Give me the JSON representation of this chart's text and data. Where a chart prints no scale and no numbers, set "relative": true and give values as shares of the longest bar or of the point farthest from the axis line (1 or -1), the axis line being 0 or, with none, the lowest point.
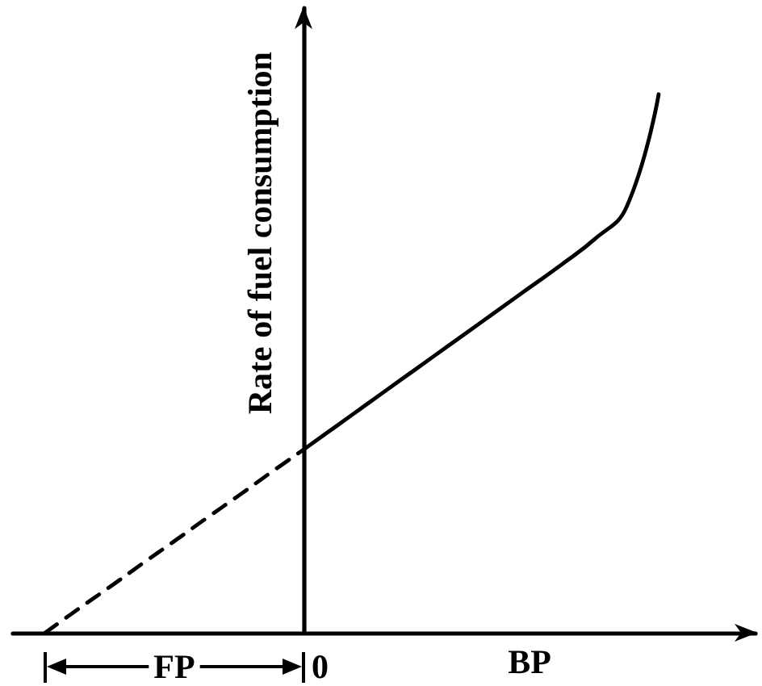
{
  "chart_data": {
    "type": "line",
    "relative": true,
    "ylabel": "Rate of fuel consumption",
    "xlabel": "BP",
    "annotations": [
      "FP",
      "0"
    ],
    "marker": "none",
    "categories": [
      null,
      null,
      null,
      null,
      null,
      null,
      null,
      null,
      null,
      null,
      null,
      null,
      null,
      null,
      null,
      null,
      null,
      null,
      null,
      null,
      null,
      null,
      null,
      null
    ],
    "series": [
      {
        "color": "#000000",
        "line_style": "dashed",
        "values": [
          null,
          0,
          0.043,
          0.085,
          0.128,
          0.17,
          0.213,
          0.255,
          0.298,
          0.34,
          null,
          null,
          null,
          null,
          null,
          null,
          null,
          null,
          null,
          null,
          null,
          null,
          null,
          null
        ]
      },
      {
        "color": "#000000",
        "line_style": "solid",
        "values": [
          null,
          null,
          null,
          null,
          null,
          null,
          null,
          null,
          null,
          0.34,
          0.383,
          0.426,
          0.469,
          0.512,
          0.555,
          0.598,
          0.641,
          0.684,
          0.73,
          0.79,
          1,
          null,
          null,
          null
        ]
      }
    ]
  }
}
